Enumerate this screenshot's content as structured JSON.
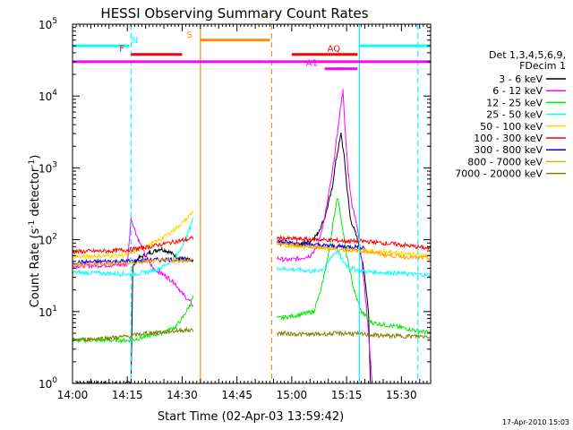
{
  "chart_data": {
    "type": "line",
    "title": "HESSI Observing Summary Count Rates",
    "xlabel": "Start Time (02-Apr-03 13:59:42)",
    "ylabel_main": "Count Rate (s",
    "ylabel_sup1": "-1",
    "ylabel_mid": " detector",
    "ylabel_sup2": "-1",
    "ylabel_end": ")",
    "xlim_minutes": [
      0,
      98
    ],
    "ylim": [
      1,
      100000
    ],
    "yscale": "log",
    "x_ticks": [
      {
        "label": "14:00",
        "minute": 0
      },
      {
        "label": "14:15",
        "minute": 15
      },
      {
        "label": "14:30",
        "minute": 30
      },
      {
        "label": "14:45",
        "minute": 45
      },
      {
        "label": "15:00",
        "minute": 60
      },
      {
        "label": "15:15",
        "minute": 75
      },
      {
        "label": "15:30",
        "minute": 90
      }
    ],
    "y_ticks": [
      {
        "base": "10",
        "exp": "0",
        "value": 1
      },
      {
        "base": "10",
        "exp": "1",
        "value": 10
      },
      {
        "base": "10",
        "exp": "2",
        "value": 100
      },
      {
        "base": "10",
        "exp": "3",
        "value": 1000
      },
      {
        "base": "10",
        "exp": "4",
        "value": 10000
      },
      {
        "base": "10",
        "exp": "5",
        "value": 100000
      }
    ],
    "legend_header": [
      "Det 1,3,4,5,6,9,",
      "FDecim 1"
    ],
    "gaps_minutes": [
      [
        33,
        54
      ]
    ],
    "series": [
      {
        "name": "3 - 6 keV",
        "color": "#000000",
        "points": [
          [
            0,
            1
          ],
          [
            16,
            1
          ],
          [
            16.5,
            42
          ],
          [
            18,
            55
          ],
          [
            21,
            65
          ],
          [
            24,
            75
          ],
          [
            26,
            70
          ],
          [
            28,
            60
          ],
          [
            30,
            55
          ],
          [
            32,
            52
          ],
          [
            33,
            50
          ],
          [
            56,
            90
          ],
          [
            59,
            88
          ],
          [
            62,
            85
          ],
          [
            65,
            95
          ],
          [
            67,
            120
          ],
          [
            69,
            200
          ],
          [
            71,
            500
          ],
          [
            72,
            1200
          ],
          [
            73.5,
            3000
          ],
          [
            74.5,
            1200
          ],
          [
            75,
            600
          ],
          [
            76,
            200
          ],
          [
            78,
            100
          ],
          [
            79,
            60
          ],
          [
            80,
            30
          ],
          [
            81,
            10
          ],
          [
            81.5,
            1
          ]
        ]
      },
      {
        "name": "6 - 12 keV",
        "color": "#ff00ff",
        "points": [
          [
            0,
            43
          ],
          [
            15,
            45
          ],
          [
            16,
            200
          ],
          [
            18,
            100
          ],
          [
            20,
            60
          ],
          [
            22,
            40
          ],
          [
            24,
            35
          ],
          [
            26,
            30
          ],
          [
            28,
            25
          ],
          [
            30,
            18
          ],
          [
            32,
            14
          ],
          [
            33,
            12
          ],
          [
            56,
            55
          ],
          [
            59,
            52
          ],
          [
            62,
            55
          ],
          [
            65,
            60
          ],
          [
            67,
            80
          ],
          [
            69,
            200
          ],
          [
            71,
            800
          ],
          [
            72.5,
            3000
          ],
          [
            73.5,
            8000
          ],
          [
            74,
            12000
          ],
          [
            74.5,
            4000
          ],
          [
            75.5,
            800
          ],
          [
            76.5,
            300
          ],
          [
            78,
            150
          ],
          [
            79,
            60
          ],
          [
            80,
            20
          ],
          [
            81,
            5
          ],
          [
            82,
            1
          ]
        ]
      },
      {
        "name": "12 - 25 keV",
        "color": "#00ee00",
        "points": [
          [
            0,
            4
          ],
          [
            15,
            4
          ],
          [
            16,
            4
          ],
          [
            24,
            5
          ],
          [
            28,
            6
          ],
          [
            30,
            8
          ],
          [
            32,
            12
          ],
          [
            33,
            16
          ],
          [
            56,
            8
          ],
          [
            62,
            9
          ],
          [
            66,
            10
          ],
          [
            68,
            20
          ],
          [
            70,
            60
          ],
          [
            71.5,
            200
          ],
          [
            72.5,
            400
          ],
          [
            73.5,
            200
          ],
          [
            75,
            60
          ],
          [
            77,
            20
          ],
          [
            79,
            10
          ],
          [
            82,
            7
          ],
          [
            90,
            6
          ],
          [
            98,
            5
          ]
        ]
      },
      {
        "name": "25 - 50 keV",
        "color": "#00ffff",
        "points": [
          [
            0,
            35
          ],
          [
            10,
            34
          ],
          [
            16,
            33
          ],
          [
            20,
            35
          ],
          [
            24,
            40
          ],
          [
            28,
            55
          ],
          [
            31,
            100
          ],
          [
            33,
            200
          ],
          [
            56,
            40
          ],
          [
            62,
            38
          ],
          [
            66,
            36
          ],
          [
            69,
            40
          ],
          [
            71,
            60
          ],
          [
            72.5,
            70
          ],
          [
            74,
            50
          ],
          [
            76,
            40
          ],
          [
            80,
            36
          ],
          [
            90,
            34
          ],
          [
            98,
            32
          ]
        ]
      },
      {
        "name": "50 - 100 keV",
        "color": "#ffd700",
        "points": [
          [
            0,
            58
          ],
          [
            10,
            60
          ],
          [
            15,
            62
          ],
          [
            20,
            80
          ],
          [
            24,
            100
          ],
          [
            28,
            140
          ],
          [
            31,
            190
          ],
          [
            33,
            250
          ],
          [
            56,
            85
          ],
          [
            60,
            82
          ],
          [
            64,
            80
          ],
          [
            68,
            80
          ],
          [
            72,
            78
          ],
          [
            76,
            75
          ],
          [
            80,
            70
          ],
          [
            90,
            65
          ],
          [
            98,
            60
          ]
        ]
      },
      {
        "name": "100 - 300 keV",
        "color": "#ff0000",
        "points": [
          [
            0,
            68
          ],
          [
            10,
            70
          ],
          [
            15,
            72
          ],
          [
            20,
            78
          ],
          [
            25,
            88
          ],
          [
            30,
            98
          ],
          [
            33,
            105
          ],
          [
            56,
            105
          ],
          [
            62,
            102
          ],
          [
            68,
            100
          ],
          [
            72,
            98
          ],
          [
            76,
            95
          ],
          [
            80,
            95
          ],
          [
            85,
            90
          ],
          [
            90,
            85
          ],
          [
            98,
            75
          ]
        ]
      },
      {
        "name": "300 - 800 keV",
        "color": "#0000ff",
        "points": [
          [
            0,
            48
          ],
          [
            10,
            50
          ],
          [
            15,
            50
          ],
          [
            20,
            52
          ],
          [
            25,
            53
          ],
          [
            30,
            53
          ],
          [
            33,
            53
          ],
          [
            56,
            95
          ],
          [
            60,
            90
          ],
          [
            66,
            85
          ],
          [
            70,
            82
          ],
          [
            74,
            80
          ],
          [
            78,
            80
          ],
          [
            80,
            78
          ]
        ]
      },
      {
        "name": "800 - 7000 keV",
        "color": "#ffa500",
        "points": [
          [
            0,
            45
          ],
          [
            10,
            46
          ],
          [
            15,
            47
          ],
          [
            20,
            50
          ],
          [
            25,
            51
          ],
          [
            30,
            52
          ],
          [
            33,
            52
          ],
          [
            56,
            90
          ],
          [
            60,
            85
          ],
          [
            66,
            80
          ],
          [
            70,
            75
          ],
          [
            75,
            72
          ],
          [
            80,
            70
          ],
          [
            85,
            62
          ],
          [
            90,
            58
          ],
          [
            98,
            55
          ]
        ]
      },
      {
        "name": "7000 - 20000 keV",
        "color": "#808000",
        "points": [
          [
            0,
            4
          ],
          [
            10,
            4.3
          ],
          [
            15,
            4.5
          ],
          [
            20,
            5
          ],
          [
            25,
            5.2
          ],
          [
            30,
            5.5
          ],
          [
            33,
            5.5
          ],
          [
            56,
            5
          ],
          [
            65,
            4.8
          ],
          [
            75,
            5
          ],
          [
            85,
            4.6
          ],
          [
            98,
            4.5
          ]
        ]
      }
    ],
    "flag_bars": [
      {
        "label": "N",
        "color": "#00ffff",
        "level": 50000,
        "segments": [
          [
            0,
            15.5
          ],
          [
            78.5,
            98
          ]
        ],
        "label_minute": 17
      },
      {
        "label": "F",
        "color": "#ff0000",
        "level": 38000,
        "segments": [
          [
            16,
            30
          ]
        ],
        "label_minute": 13.5
      },
      {
        "label": "S",
        "color": "#ff8c00",
        "level": 60000,
        "segments": [
          [
            35,
            54
          ]
        ],
        "label_minute": 32
      },
      {
        "label": "AQ",
        "color": "#ff0000",
        "level": 38000,
        "segments": [
          [
            60,
            78
          ]
        ],
        "label_minute": 71.5
      },
      {
        "label": "",
        "color": "#ff00ff",
        "level": 30000,
        "segments": [
          [
            0,
            98
          ]
        ],
        "label_minute": 0
      },
      {
        "label": "A1",
        "color": "#ff00ff",
        "level": 24000,
        "segments": [
          [
            69,
            74
          ],
          [
            72.5,
            78
          ]
        ],
        "label_minute": 65.5
      }
    ],
    "vertical_lines": [
      {
        "minute": 16,
        "color": "#00ffff",
        "dashed": true
      },
      {
        "minute": 35,
        "color": "#ff8c00",
        "dashed": false
      },
      {
        "minute": 54.5,
        "color": "#ff8c00",
        "dashed": true
      },
      {
        "minute": 78.5,
        "color": "#00ffff",
        "dashed": false
      },
      {
        "minute": 94.5,
        "color": "#00ffff",
        "dashed": true
      }
    ],
    "footer_date": "17-Apr-2010 15:03"
  }
}
